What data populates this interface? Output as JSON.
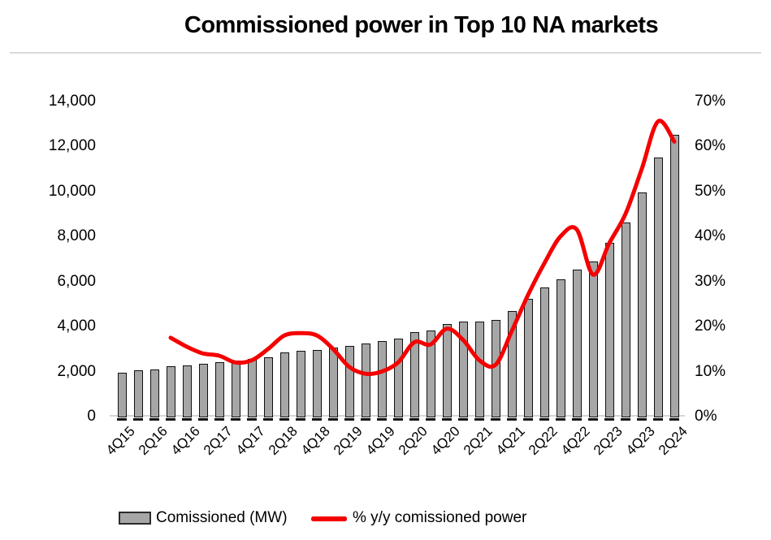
{
  "title": "Commissioned power in Top 10 NA markets",
  "legend": {
    "bar_label": "Comissioned (MW)",
    "line_label": "% y/y comissioned power"
  },
  "colors": {
    "bar_fill": "#A6A6A6",
    "bar_border": "#111111",
    "line": "#F50000",
    "axis_line": "#D6D6D6",
    "text": "#000000",
    "divider": "#D9D9D9"
  },
  "chart_data": {
    "type": "combo",
    "title": "Commissioned power in Top 10 NA markets",
    "categories": [
      "4Q15",
      "1Q16",
      "2Q16",
      "3Q16",
      "4Q16",
      "1Q17",
      "2Q17",
      "3Q17",
      "4Q17",
      "1Q18",
      "2Q18",
      "3Q18",
      "4Q18",
      "1Q19",
      "2Q19",
      "3Q19",
      "4Q19",
      "1Q20",
      "2Q20",
      "3Q20",
      "4Q20",
      "1Q21",
      "2Q21",
      "3Q21",
      "4Q21",
      "1Q22",
      "2Q22",
      "3Q22",
      "4Q22",
      "1Q23",
      "2Q23",
      "3Q23",
      "4Q23",
      "1Q24",
      "2Q24"
    ],
    "x_tick_labels": [
      "4Q15",
      "2Q16",
      "4Q16",
      "2Q17",
      "4Q17",
      "2Q18",
      "4Q18",
      "2Q19",
      "4Q19",
      "2Q20",
      "4Q20",
      "2Q21",
      "4Q21",
      "2Q22",
      "4Q22",
      "2Q23",
      "4Q23",
      "2Q24"
    ],
    "series": [
      {
        "name": "Comissioned (MW)",
        "type": "bar",
        "axis": "left",
        "values": [
          1950,
          2050,
          2100,
          2230,
          2270,
          2340,
          2400,
          2480,
          2550,
          2630,
          2850,
          2920,
          2950,
          3060,
          3130,
          3240,
          3350,
          3460,
          3750,
          3820,
          4100,
          4200,
          4210,
          4290,
          4680,
          5220,
          5730,
          6090,
          6520,
          6880,
          7700,
          8600,
          9930,
          11480,
          12490
        ]
      },
      {
        "name": "% y/y comissioned power",
        "type": "line",
        "axis": "right",
        "values": [
          null,
          null,
          null,
          17.5,
          15.5,
          14,
          13.5,
          12,
          12.5,
          15,
          18,
          18.5,
          18,
          15,
          11,
          9.5,
          10,
          12,
          16.5,
          16,
          19.5,
          17,
          12.5,
          11.5,
          19,
          27,
          34,
          40,
          41.5,
          31.5,
          38.5,
          45,
          55,
          65.5,
          61
        ]
      }
    ],
    "left_axis": {
      "min": 0,
      "max": 14000,
      "step": 2000,
      "tick_labels": [
        "0",
        "2,000",
        "4,000",
        "6,000",
        "8,000",
        "10,000",
        "12,000",
        "14,000"
      ]
    },
    "right_axis": {
      "min": 0,
      "max": 70,
      "step": 10,
      "tick_labels": [
        "0%",
        "10%",
        "20%",
        "30%",
        "40%",
        "50%",
        "60%",
        "70%"
      ]
    },
    "grid": false,
    "legend_position": "bottom"
  }
}
